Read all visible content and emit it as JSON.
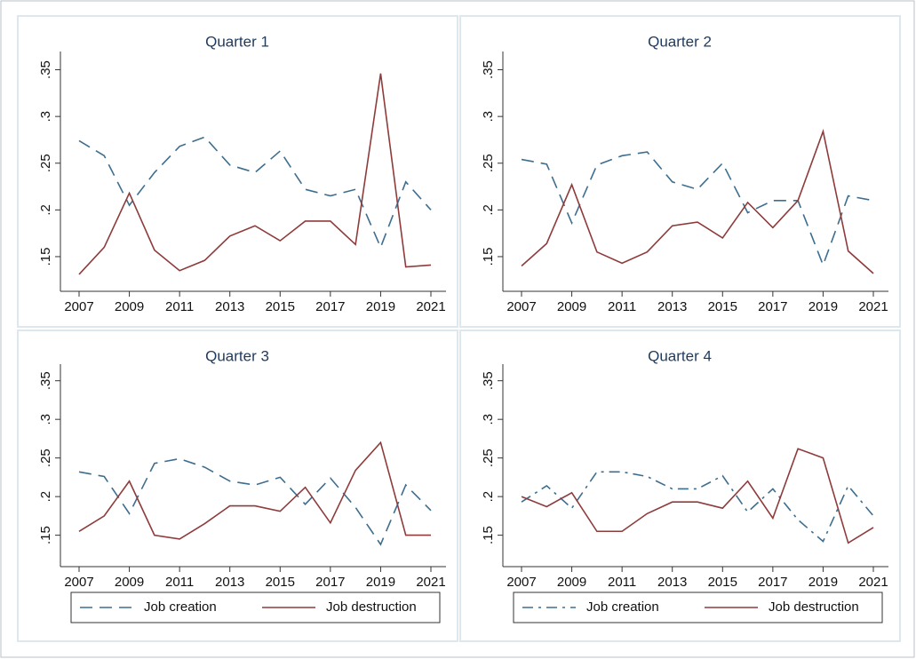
{
  "chart_data": [
    {
      "type": "line",
      "title": "Quarter 1",
      "x": [
        2007,
        2008,
        2009,
        2010,
        2011,
        2012,
        2013,
        2014,
        2015,
        2016,
        2017,
        2018,
        2019,
        2020,
        2021
      ],
      "series": [
        {
          "name": "Job creation",
          "color": "#3d6e8f",
          "line_style": "dashed",
          "values": [
            0.274,
            0.258,
            0.205,
            0.24,
            0.268,
            0.278,
            0.248,
            0.24,
            0.263,
            0.222,
            0.215,
            0.222,
            0.16,
            0.23,
            0.2
          ]
        },
        {
          "name": "Job destruction",
          "color": "#8e3b3b",
          "line_style": "solid",
          "values": [
            0.131,
            0.16,
            0.218,
            0.157,
            0.135,
            0.146,
            0.172,
            0.183,
            0.167,
            0.188,
            0.188,
            0.163,
            0.346,
            0.139,
            0.141
          ]
        }
      ],
      "xlim": [
        2007,
        2021
      ],
      "xticks": [
        2007,
        2009,
        2011,
        2013,
        2015,
        2017,
        2019,
        2021
      ],
      "ylim": [
        0.13,
        0.36
      ],
      "yticks": [
        {
          "value": 0.15,
          "label": ".15"
        },
        {
          "value": 0.2,
          "label": ".2"
        },
        {
          "value": 0.25,
          "label": ".25"
        },
        {
          "value": 0.3,
          "label": ".3"
        },
        {
          "value": 0.35,
          "label": ".35"
        }
      ]
    },
    {
      "type": "line",
      "title": "Quarter 2",
      "x": [
        2007,
        2008,
        2009,
        2010,
        2011,
        2012,
        2013,
        2014,
        2015,
        2016,
        2017,
        2018,
        2019,
        2020,
        2021
      ],
      "series": [
        {
          "name": "Job creation",
          "color": "#3d6e8f",
          "line_style": "dashed",
          "values": [
            0.254,
            0.249,
            0.186,
            0.248,
            0.258,
            0.262,
            0.23,
            0.222,
            0.25,
            0.197,
            0.21,
            0.21,
            0.141,
            0.215,
            0.21
          ]
        },
        {
          "name": "Job destruction",
          "color": "#8e3b3b",
          "line_style": "solid",
          "values": [
            0.14,
            0.164,
            0.227,
            0.155,
            0.143,
            0.155,
            0.183,
            0.187,
            0.17,
            0.208,
            0.181,
            0.21,
            0.284,
            0.156,
            0.132
          ]
        }
      ],
      "xlim": [
        2007,
        2021
      ],
      "xticks": [
        2007,
        2009,
        2011,
        2013,
        2015,
        2017,
        2019,
        2021
      ],
      "ylim": [
        0.13,
        0.36
      ],
      "yticks": [
        {
          "value": 0.15,
          "label": ".15"
        },
        {
          "value": 0.2,
          "label": ".2"
        },
        {
          "value": 0.25,
          "label": ".25"
        },
        {
          "value": 0.3,
          "label": ".3"
        },
        {
          "value": 0.35,
          "label": ".35"
        }
      ]
    },
    {
      "type": "line",
      "title": "Quarter 3",
      "x": [
        2007,
        2008,
        2009,
        2010,
        2011,
        2012,
        2013,
        2014,
        2015,
        2016,
        2017,
        2018,
        2019,
        2020,
        2021
      ],
      "series": [
        {
          "name": "Job creation",
          "color": "#3d6e8f",
          "line_style": "dashed",
          "values": [
            0.232,
            0.226,
            0.178,
            0.243,
            0.249,
            0.238,
            0.22,
            0.215,
            0.225,
            0.19,
            0.224,
            0.186,
            0.138,
            0.215,
            0.182
          ]
        },
        {
          "name": "Job destruction",
          "color": "#8e3b3b",
          "line_style": "solid",
          "values": [
            0.155,
            0.175,
            0.22,
            0.15,
            0.145,
            0.165,
            0.188,
            0.188,
            0.181,
            0.212,
            0.166,
            0.234,
            0.27,
            0.15,
            0.15
          ]
        }
      ],
      "xlim": [
        2007,
        2021
      ],
      "xticks": [
        2007,
        2009,
        2011,
        2013,
        2015,
        2017,
        2019,
        2021
      ],
      "ylim": [
        0.13,
        0.36
      ],
      "yticks": [
        {
          "value": 0.15,
          "label": ".15"
        },
        {
          "value": 0.2,
          "label": ".2"
        },
        {
          "value": 0.25,
          "label": ".25"
        },
        {
          "value": 0.3,
          "label": ".3"
        },
        {
          "value": 0.35,
          "label": ".35"
        }
      ],
      "legend": "bottom"
    },
    {
      "type": "line",
      "title": "Quarter 4",
      "x": [
        2007,
        2008,
        2009,
        2010,
        2011,
        2012,
        2013,
        2014,
        2015,
        2016,
        2017,
        2018,
        2019,
        2020,
        2021
      ],
      "series": [
        {
          "name": "Job creation",
          "color": "#3d6e8f",
          "line_style": "dashdot",
          "values": [
            0.193,
            0.214,
            0.185,
            0.232,
            0.232,
            0.226,
            0.21,
            0.21,
            0.227,
            0.18,
            0.21,
            0.17,
            0.142,
            0.214,
            0.175
          ]
        },
        {
          "name": "Job destruction",
          "color": "#8e3b3b",
          "line_style": "solid",
          "values": [
            0.2,
            0.187,
            0.205,
            0.155,
            0.155,
            0.178,
            0.193,
            0.193,
            0.185,
            0.22,
            0.172,
            0.262,
            0.25,
            0.14,
            0.16
          ]
        }
      ],
      "xlim": [
        2007,
        2021
      ],
      "xticks": [
        2007,
        2009,
        2011,
        2013,
        2015,
        2017,
        2019,
        2021
      ],
      "ylim": [
        0.13,
        0.36
      ],
      "yticks": [
        {
          "value": 0.15,
          "label": ".15"
        },
        {
          "value": 0.2,
          "label": ".2"
        },
        {
          "value": 0.25,
          "label": ".25"
        },
        {
          "value": 0.3,
          "label": ".3"
        },
        {
          "value": 0.35,
          "label": ".35"
        }
      ],
      "legend": "bottom"
    }
  ]
}
